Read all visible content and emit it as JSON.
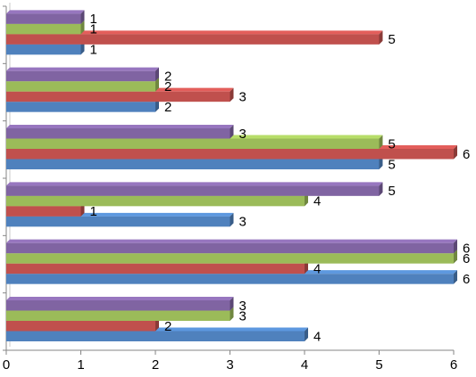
{
  "chart_data": {
    "type": "bar",
    "orientation": "horizontal",
    "style": "3d-clustered",
    "title": "",
    "xlabel": "",
    "ylabel": "",
    "xlim": [
      0,
      6
    ],
    "x_ticks": [
      "0",
      "1",
      "2",
      "3",
      "4",
      "5",
      "6"
    ],
    "categories_bottom_to_top": [
      "",
      "",
      "",
      "",
      "",
      ""
    ],
    "series": [
      {
        "color": "#4F81BD",
        "values": [
          4,
          6,
          3,
          5,
          2,
          1
        ]
      },
      {
        "color": "#C0504D",
        "values": [
          2,
          4,
          1,
          6,
          3,
          5
        ]
      },
      {
        "color": "#9BBB59",
        "values": [
          3,
          6,
          4,
          5,
          2,
          1
        ]
      },
      {
        "color": "#8064A2",
        "values": [
          3,
          6,
          5,
          3,
          2,
          1
        ]
      }
    ],
    "data_labels": true,
    "gridlines": false,
    "legend": "none"
  }
}
